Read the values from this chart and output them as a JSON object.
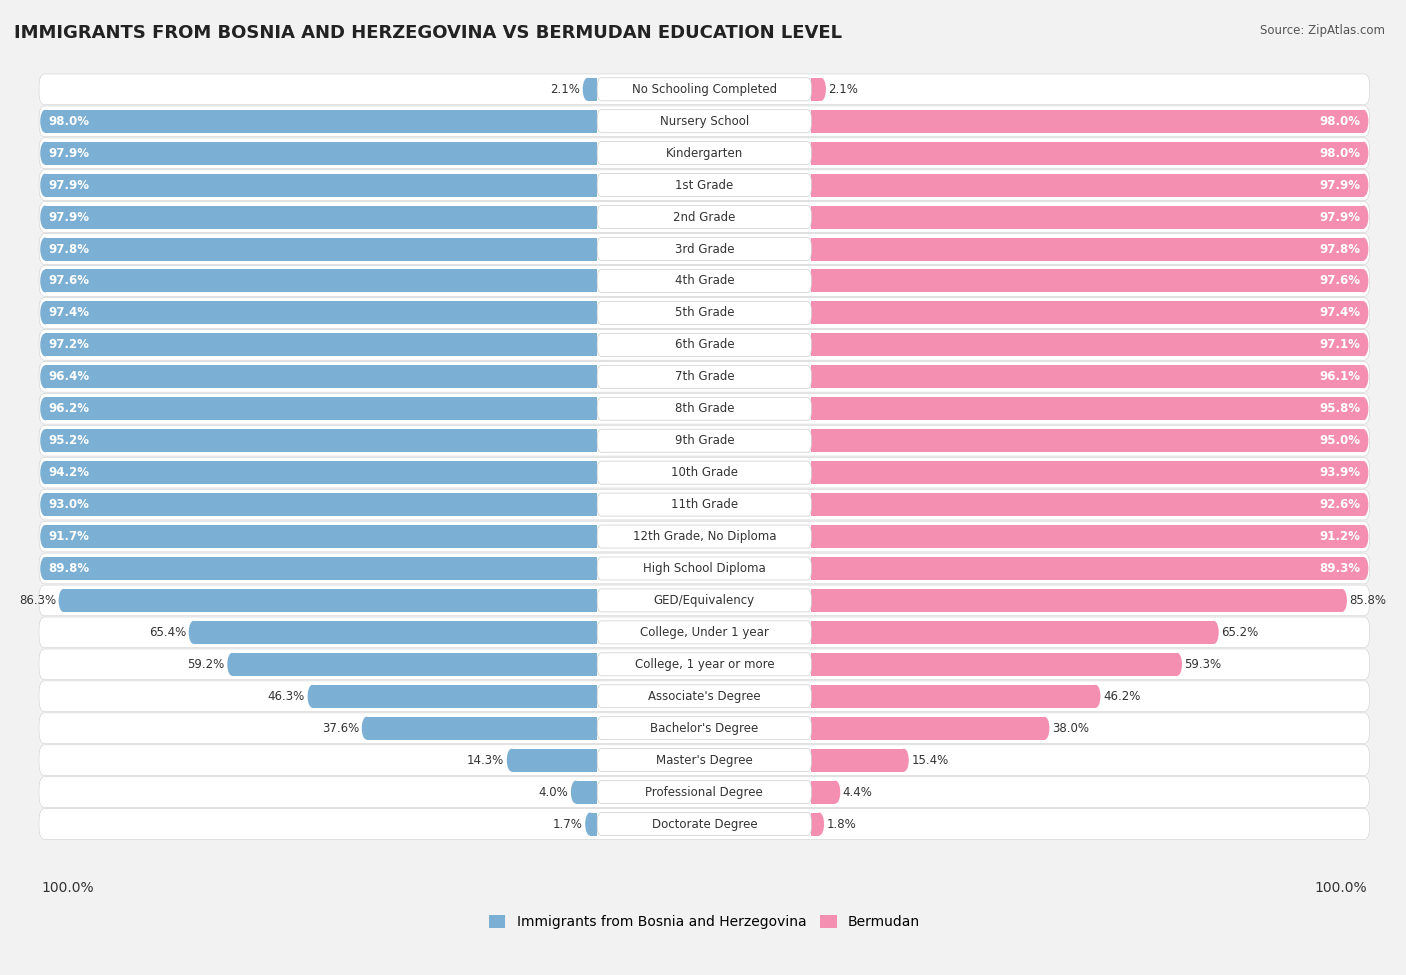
{
  "title": "IMMIGRANTS FROM BOSNIA AND HERZEGOVINA VS BERMUDAN EDUCATION LEVEL",
  "source": "Source: ZipAtlas.com",
  "categories": [
    "No Schooling Completed",
    "Nursery School",
    "Kindergarten",
    "1st Grade",
    "2nd Grade",
    "3rd Grade",
    "4th Grade",
    "5th Grade",
    "6th Grade",
    "7th Grade",
    "8th Grade",
    "9th Grade",
    "10th Grade",
    "11th Grade",
    "12th Grade, No Diploma",
    "High School Diploma",
    "GED/Equivalency",
    "College, Under 1 year",
    "College, 1 year or more",
    "Associate's Degree",
    "Bachelor's Degree",
    "Master's Degree",
    "Professional Degree",
    "Doctorate Degree"
  ],
  "bosnia_values": [
    2.1,
    98.0,
    97.9,
    97.9,
    97.9,
    97.8,
    97.6,
    97.4,
    97.2,
    96.4,
    96.2,
    95.2,
    94.2,
    93.0,
    91.7,
    89.8,
    86.3,
    65.4,
    59.2,
    46.3,
    37.6,
    14.3,
    4.0,
    1.7
  ],
  "bermudan_values": [
    2.1,
    98.0,
    98.0,
    97.9,
    97.9,
    97.8,
    97.6,
    97.4,
    97.1,
    96.1,
    95.8,
    95.0,
    93.9,
    92.6,
    91.2,
    89.3,
    85.8,
    65.2,
    59.3,
    46.2,
    38.0,
    15.4,
    4.4,
    1.8
  ],
  "bosnia_color": "#7bafd4",
  "bermudan_color": "#f48fb1",
  "background_color": "#f2f2f2",
  "row_bg_color": "#e8e8e8",
  "label_fontsize": 8.5,
  "value_fontsize": 8.5,
  "title_fontsize": 13,
  "legend_fontsize": 10,
  "footer_fontsize": 10
}
